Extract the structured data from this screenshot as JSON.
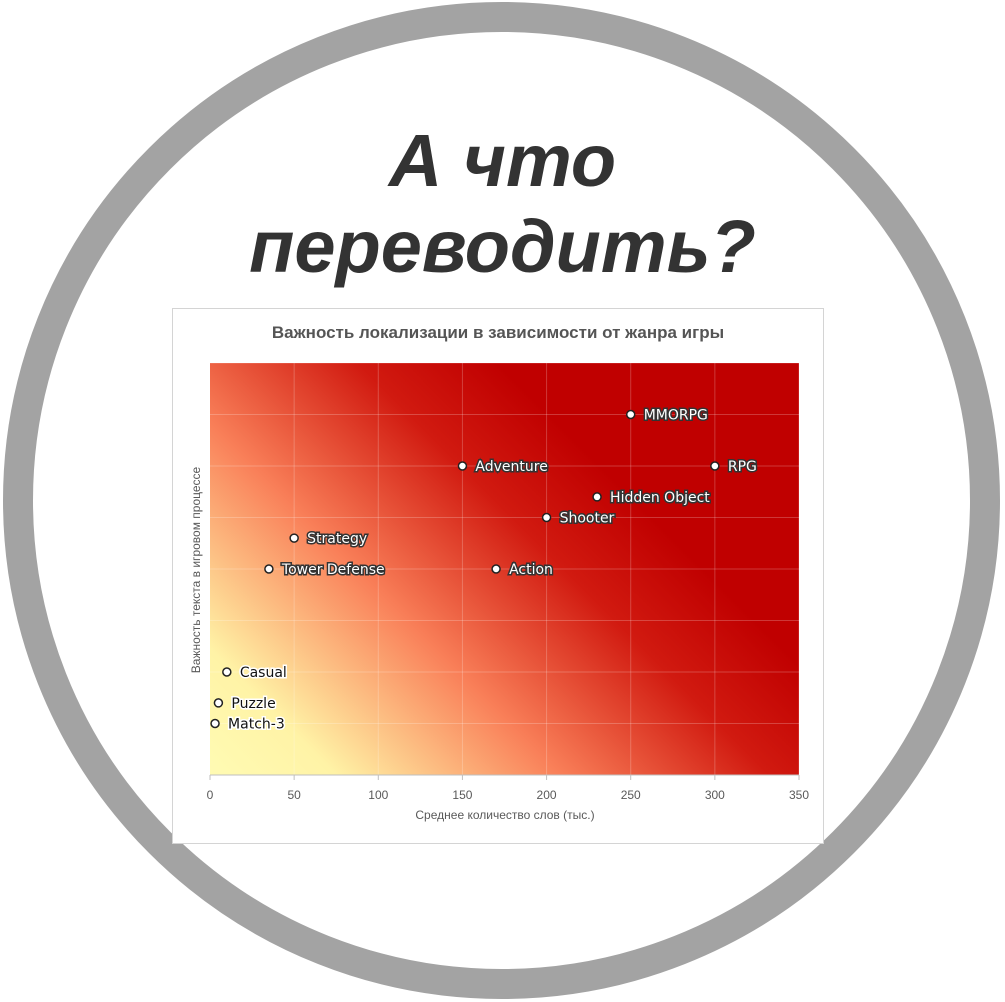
{
  "headline": {
    "line1": "А что",
    "line2": "переводить?"
  },
  "colors": {
    "ring": "#a3a3a3",
    "heat_low": "#fffbb3",
    "heat_mid": "#f98059",
    "heat_high": "#c00000",
    "headline": "#333333"
  },
  "chart_data": {
    "type": "scatter",
    "title": "Важность локализации  в зависимости  от жанра игры",
    "xlabel": "Среднее количество слов (тыс.)",
    "ylabel": "Важность текста в игровом процессе",
    "xlim": [
      0,
      350
    ],
    "ylim": [
      0,
      8
    ],
    "xticks": [
      0,
      50,
      100,
      150,
      200,
      250,
      300,
      350
    ],
    "grid": true,
    "background": "gradient yellow (bottom-left) to red (top-right)",
    "points": [
      {
        "name": "MMORPG",
        "x": 250,
        "y": 7
      },
      {
        "name": "RPG",
        "x": 300,
        "y": 6
      },
      {
        "name": "Adventure",
        "x": 150,
        "y": 6
      },
      {
        "name": "Hidden Object",
        "x": 230,
        "y": 5.4
      },
      {
        "name": "Shooter",
        "x": 200,
        "y": 5
      },
      {
        "name": "Strategy",
        "x": 50,
        "y": 4.6
      },
      {
        "name": "Tower Defense",
        "x": 35,
        "y": 4
      },
      {
        "name": "Action",
        "x": 170,
        "y": 4
      },
      {
        "name": "Casual",
        "x": 10,
        "y": 2
      },
      {
        "name": "Puzzle",
        "x": 5,
        "y": 1.4
      },
      {
        "name": "Match-3",
        "x": 3,
        "y": 1
      }
    ]
  }
}
